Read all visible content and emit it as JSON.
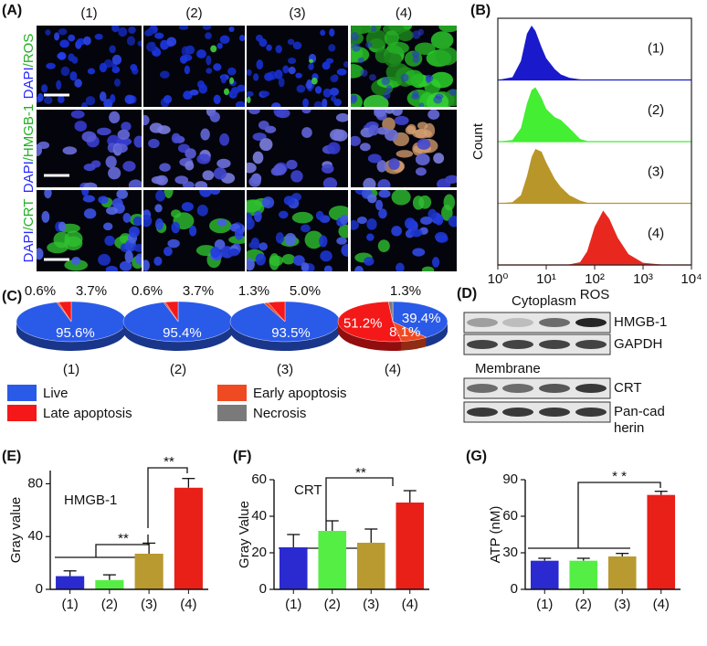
{
  "panel_labels": [
    "(A)",
    "(B)",
    "(C)",
    "(D)",
    "(E)",
    "(F)",
    "(G)"
  ],
  "microscopy": {
    "columns": [
      "(1)",
      "(2)",
      "(3)",
      "(4)"
    ],
    "rows": [
      [
        "DAPI",
        "/ROS"
      ],
      [
        "DAPI",
        "/HMGB-1"
      ],
      [
        "DAPI",
        "/CRT"
      ]
    ]
  },
  "blot": {
    "sections": [
      {
        "title": "Cytoplasm",
        "bands": [
          [
            "HMGB-1"
          ],
          [
            "GAPDH"
          ]
        ]
      },
      {
        "title": "Membrane",
        "bands": [
          [
            "CRT"
          ],
          [
            "Pan-cad",
            "herin"
          ]
        ]
      }
    ]
  },
  "pie_legend": {
    "categories": [
      "Live",
      "Early apoptosis",
      "Late apoptosis",
      "Necrosis"
    ],
    "colors": [
      "#2a5ae8",
      "#f04a22",
      "#f41818",
      "#7a7a7a"
    ]
  },
  "chart_data": [
    {
      "type": "area",
      "xlabel": "ROS",
      "ylabel": "Count",
      "xscale": "log",
      "xlim": [
        1,
        10000
      ],
      "xticks": [
        {
          "value": 1,
          "label": "10⁰"
        },
        {
          "value": 10,
          "label": "10¹"
        },
        {
          "value": 100,
          "label": "10²"
        },
        {
          "value": 1000,
          "label": "10³"
        },
        {
          "value": 10000,
          "label": "10⁴"
        }
      ],
      "ylim": [
        0,
        1
      ],
      "x": [
        1,
        2,
        3,
        4,
        5,
        6,
        8,
        10,
        15,
        20,
        30,
        50,
        70,
        100,
        150,
        200,
        300,
        500,
        1000,
        3000,
        10000
      ],
      "series": [
        {
          "name": "(1)",
          "color": "#1a1acc",
          "values": [
            0,
            0.05,
            0.35,
            0.85,
            1,
            0.9,
            0.6,
            0.4,
            0.2,
            0.1,
            0.04,
            0.01,
            0,
            0,
            0,
            0,
            0,
            0,
            0,
            0,
            0
          ]
        },
        {
          "name": "(2)",
          "color": "#44ee33",
          "values": [
            0,
            0.03,
            0.25,
            0.7,
            0.95,
            1,
            0.8,
            0.6,
            0.45,
            0.4,
            0.25,
            0.05,
            0.01,
            0,
            0,
            0,
            0,
            0,
            0,
            0,
            0
          ]
        },
        {
          "name": "(3)",
          "color": "#b8962a",
          "values": [
            0,
            0.02,
            0.15,
            0.5,
            0.85,
            1,
            0.95,
            0.75,
            0.45,
            0.3,
            0.15,
            0.05,
            0.01,
            0,
            0,
            0,
            0,
            0,
            0,
            0,
            0
          ]
        },
        {
          "name": "(4)",
          "color": "#e8281e",
          "values": [
            0,
            0,
            0,
            0,
            0,
            0,
            0,
            0,
            0,
            0,
            0.01,
            0.05,
            0.25,
            0.7,
            1,
            0.85,
            0.5,
            0.2,
            0.04,
            0,
            0
          ]
        }
      ]
    },
    {
      "type": "pie",
      "label": "(1)",
      "values": [
        95.6,
        0.6,
        3.7,
        null
      ],
      "value_labels": [
        "95.6%",
        "0.6%",
        "3.7%",
        null
      ]
    },
    {
      "type": "pie",
      "label": "(2)",
      "values": [
        95.4,
        0.6,
        3.7,
        null
      ],
      "value_labels": [
        "95.4%",
        "0.6%",
        "3.7%",
        null
      ]
    },
    {
      "type": "pie",
      "label": "(3)",
      "values": [
        93.5,
        1.3,
        5.0,
        null
      ],
      "value_labels": [
        "93.5%",
        "1.3%",
        "5.0%",
        null
      ]
    },
    {
      "type": "pie",
      "label": "(4)",
      "values": [
        39.4,
        8.1,
        51.2,
        1.3
      ],
      "value_labels": [
        "39.4%",
        "8.1%",
        "51.2%",
        "1.3%"
      ]
    },
    {
      "type": "bar",
      "title": "HMGB-1",
      "ylabel": "Gray value",
      "categories": [
        "(1)",
        "(2)",
        "(3)",
        "(4)"
      ],
      "values": [
        10,
        7,
        27,
        77
      ],
      "errors": [
        4,
        4,
        8,
        7
      ],
      "colors": [
        "#2a2ad0",
        "#55ee44",
        "#b89a30",
        "#e82018"
      ],
      "ylim": [
        0,
        90
      ],
      "yticks": [
        0,
        40,
        80
      ],
      "annotations": [
        "**",
        "**"
      ]
    },
    {
      "type": "bar",
      "title": "CRT",
      "ylabel": "Gray Value",
      "categories": [
        "(1)",
        "(2)",
        "(3)",
        "(4)"
      ],
      "values": [
        23,
        32,
        25.5,
        47.5
      ],
      "errors": [
        7,
        5.5,
        7.5,
        6.5
      ],
      "colors": [
        "#2a2ad0",
        "#55ee44",
        "#b89a30",
        "#e82018"
      ],
      "ylim": [
        0,
        60
      ],
      "yticks": [
        0,
        20,
        40,
        60
      ],
      "annotations": [
        "**"
      ]
    },
    {
      "type": "bar",
      "ylabel": "ATP (nM)",
      "categories": [
        "(1)",
        "(2)",
        "(3)",
        "(4)"
      ],
      "values": [
        23.5,
        23.5,
        27,
        77.5
      ],
      "errors": [
        2,
        2,
        2.5,
        3
      ],
      "colors": [
        "#2a2ad0",
        "#55ee44",
        "#b89a30",
        "#e82018"
      ],
      "ylim": [
        0,
        90
      ],
      "yticks": [
        0,
        30,
        60,
        90
      ],
      "annotations": [
        "* *"
      ]
    }
  ]
}
